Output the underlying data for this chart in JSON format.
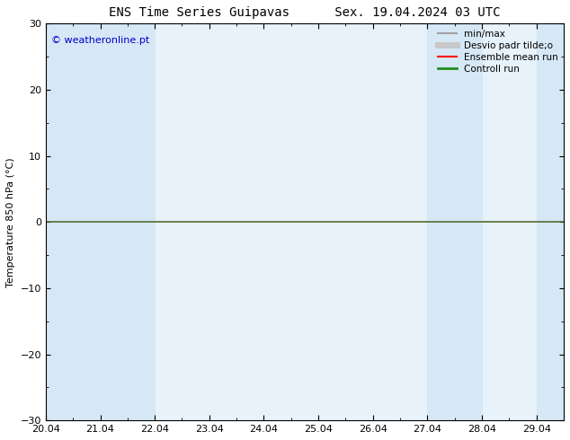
{
  "title": "ENS Time Series Guipavas",
  "title2": "Sex. 19.04.2024 03 UTC",
  "ylabel": "Temperature 850 hPa (°C)",
  "ylim": [
    -30,
    30
  ],
  "yticks": [
    -30,
    -20,
    -10,
    0,
    10,
    20,
    30
  ],
  "xlim": [
    0,
    9
  ],
  "xtick_labels": [
    "20.04",
    "21.04",
    "22.04",
    "23.04",
    "24.04",
    "25.04",
    "26.04",
    "27.04",
    "28.04",
    "29.04"
  ],
  "xtick_positions": [
    0,
    1,
    2,
    3,
    4,
    5,
    6,
    7,
    8,
    9
  ],
  "shaded_bands": [
    [
      0,
      1
    ],
    [
      1,
      2
    ],
    [
      7,
      8
    ],
    [
      9,
      10
    ]
  ],
  "band_color": "#d6e8f5",
  "plot_bg_color": "#e8f2fa",
  "hline_y": 0,
  "hline_color": "#556b2f",
  "watermark": "© weatheronline.pt",
  "watermark_color": "#0000cc",
  "legend_items": [
    {
      "label": "min/max",
      "color": "#a0a0a0",
      "lw": 1.5
    },
    {
      "label": "Desvio padr tilde;o",
      "color": "#c8c8c8",
      "lw": 5
    },
    {
      "label": "Ensemble mean run",
      "color": "#ff0000",
      "lw": 1.5
    },
    {
      "label": "Controll run",
      "color": "#228b22",
      "lw": 2
    }
  ],
  "background_color": "#ffffff",
  "title_fontsize": 10,
  "axis_label_fontsize": 8,
  "tick_fontsize": 8,
  "legend_fontsize": 7.5
}
